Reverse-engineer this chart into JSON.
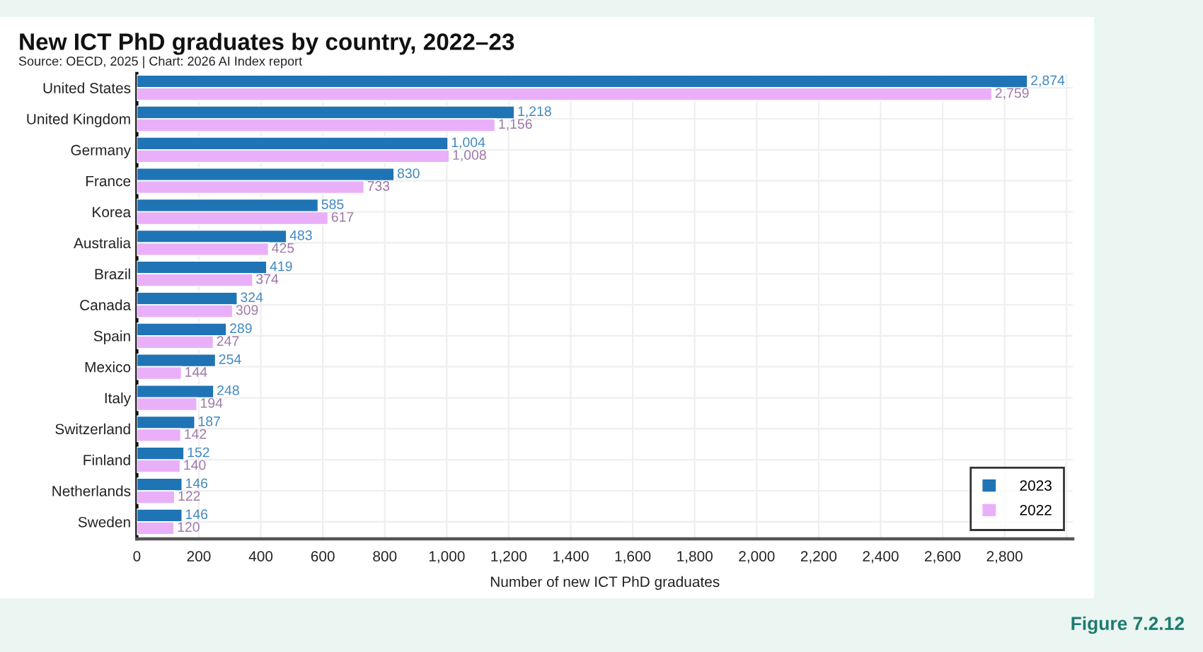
{
  "chart_data": {
    "type": "bar",
    "orientation": "horizontal",
    "title": "New ICT PhD graduates by country, 2022–23",
    "subtitle": "Source: OECD, 2025 | Chart: 2026 AI Index report",
    "xlabel": "Number of new ICT PhD graduates",
    "categories": [
      "United States",
      "United Kingdom",
      "Germany",
      "France",
      "Korea",
      "Australia",
      "Brazil",
      "Canada",
      "Spain",
      "Mexico",
      "Italy",
      "Switzerland",
      "Finland",
      "Netherlands",
      "Sweden"
    ],
    "series": [
      {
        "name": "2023",
        "color": "#1f74b5",
        "values": [
          2874,
          1218,
          1004,
          830,
          585,
          483,
          419,
          324,
          289,
          254,
          248,
          187,
          152,
          146,
          146
        ],
        "value_labels": [
          "2,874",
          "1,218",
          "1,004",
          "830",
          "585",
          "483",
          "419",
          "324",
          "289",
          "254",
          "248",
          "187",
          "152",
          "146",
          "146"
        ]
      },
      {
        "name": "2022",
        "color": "#e9b0f9",
        "values": [
          2759,
          1156,
          1008,
          733,
          617,
          425,
          374,
          309,
          247,
          144,
          194,
          142,
          140,
          122,
          120
        ],
        "value_labels": [
          "2,759",
          "1,156",
          "1,008",
          "733",
          "617",
          "425",
          "374",
          "309",
          "247",
          "144",
          "194",
          "142",
          "140",
          "122",
          "120"
        ]
      }
    ],
    "xlim": [
      0,
      3020
    ],
    "xticks": [
      0,
      200,
      400,
      600,
      800,
      {
        "value": 1000,
        "label": "1,000"
      },
      {
        "value": 1200,
        "label": "1,200"
      },
      {
        "value": 1400,
        "label": "1,400"
      },
      {
        "value": 1600,
        "label": "1,600"
      },
      {
        "value": 1800,
        "label": "1,800"
      },
      {
        "value": 2000,
        "label": "2,000"
      },
      {
        "value": 2200,
        "label": "2,200"
      },
      {
        "value": 2400,
        "label": "2,400"
      },
      {
        "value": 2600,
        "label": "2,600"
      },
      {
        "value": 2800,
        "label": "2,800"
      },
      {
        "value": 3000,
        "label": null
      }
    ],
    "grid": true,
    "legend": "bottom right",
    "annotations": [
      "Figure 7.2.12"
    ]
  }
}
